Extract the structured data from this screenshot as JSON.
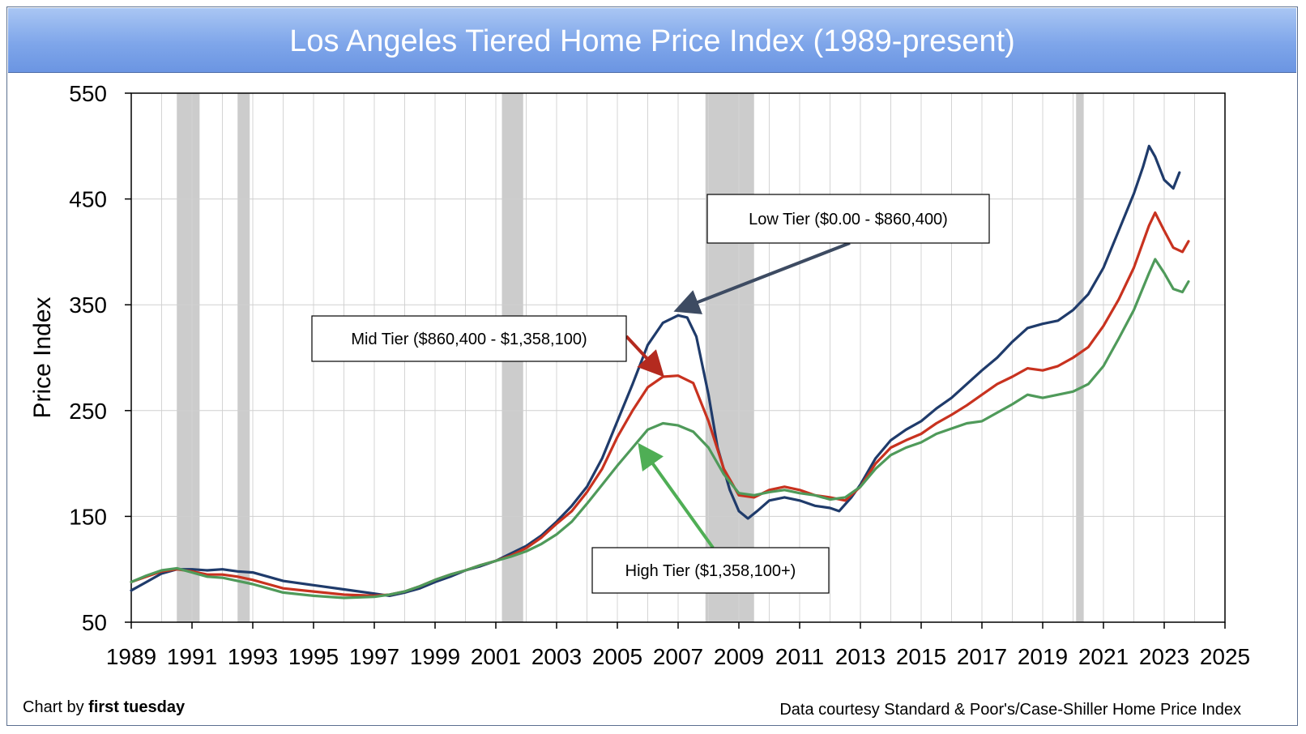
{
  "chart_data": {
    "type": "line",
    "title": "Los Angeles Tiered Home Price Index (1989-present)",
    "xlabel": "",
    "ylabel": "Price Index",
    "xlim": [
      1989,
      2025
    ],
    "ylim": [
      50,
      550
    ],
    "x_ticks": [
      "1989",
      "1991",
      "1993",
      "1995",
      "1997",
      "1999",
      "2001",
      "2003",
      "2005",
      "2007",
      "2009",
      "2011",
      "2013",
      "2015",
      "2017",
      "2019",
      "2021",
      "2023",
      "2025"
    ],
    "y_ticks": [
      "50",
      "150",
      "250",
      "350",
      "450",
      "550"
    ],
    "grid": true,
    "recessions": [
      [
        1990.5,
        1991.25
      ],
      [
        1992.5,
        1992.9
      ],
      [
        2001.2,
        2001.9
      ],
      [
        2007.9,
        2009.5
      ],
      [
        2020.1,
        2020.35
      ]
    ],
    "series": [
      {
        "name": "Low Tier ($0.00 - $860,400)",
        "color": "#1f3b6b",
        "points": [
          [
            1989,
            80
          ],
          [
            1989.5,
            88
          ],
          [
            1990,
            96
          ],
          [
            1990.5,
            100
          ],
          [
            1991,
            100
          ],
          [
            1991.5,
            99
          ],
          [
            1992,
            100
          ],
          [
            1992.5,
            98
          ],
          [
            1993,
            97
          ],
          [
            1993.5,
            93
          ],
          [
            1994,
            89
          ],
          [
            1995,
            85
          ],
          [
            1996,
            81
          ],
          [
            1997,
            77
          ],
          [
            1997.5,
            75
          ],
          [
            1998,
            78
          ],
          [
            1998.5,
            82
          ],
          [
            1999,
            88
          ],
          [
            1999.5,
            93
          ],
          [
            2000,
            99
          ],
          [
            2000.5,
            103
          ],
          [
            2001,
            108
          ],
          [
            2001.5,
            115
          ],
          [
            2002,
            122
          ],
          [
            2002.5,
            132
          ],
          [
            2003,
            145
          ],
          [
            2003.5,
            160
          ],
          [
            2004,
            178
          ],
          [
            2004.5,
            205
          ],
          [
            2005,
            240
          ],
          [
            2005.5,
            275
          ],
          [
            2006,
            312
          ],
          [
            2006.5,
            333
          ],
          [
            2007,
            340
          ],
          [
            2007.3,
            338
          ],
          [
            2007.6,
            320
          ],
          [
            2008,
            265
          ],
          [
            2008.3,
            215
          ],
          [
            2008.7,
            175
          ],
          [
            2009,
            155
          ],
          [
            2009.3,
            148
          ],
          [
            2009.6,
            155
          ],
          [
            2010,
            165
          ],
          [
            2010.5,
            168
          ],
          [
            2011,
            165
          ],
          [
            2011.5,
            160
          ],
          [
            2012,
            158
          ],
          [
            2012.3,
            155
          ],
          [
            2012.7,
            168
          ],
          [
            2013,
            180
          ],
          [
            2013.5,
            205
          ],
          [
            2014,
            222
          ],
          [
            2014.5,
            232
          ],
          [
            2015,
            240
          ],
          [
            2015.5,
            252
          ],
          [
            2016,
            262
          ],
          [
            2016.5,
            275
          ],
          [
            2017,
            288
          ],
          [
            2017.5,
            300
          ],
          [
            2018,
            315
          ],
          [
            2018.5,
            328
          ],
          [
            2019,
            332
          ],
          [
            2019.5,
            335
          ],
          [
            2020,
            345
          ],
          [
            2020.5,
            360
          ],
          [
            2021,
            385
          ],
          [
            2021.5,
            420
          ],
          [
            2022,
            455
          ],
          [
            2022.3,
            480
          ],
          [
            2022.5,
            500
          ],
          [
            2022.7,
            490
          ],
          [
            2023,
            468
          ],
          [
            2023.3,
            460
          ],
          [
            2023.5,
            475
          ]
        ]
      },
      {
        "name": "Mid Tier ($860,400 - $1,358,100)",
        "color": "#c8321f",
        "points": [
          [
            1989,
            88
          ],
          [
            1989.5,
            93
          ],
          [
            1990,
            98
          ],
          [
            1990.5,
            100
          ],
          [
            1991,
            98
          ],
          [
            1991.5,
            95
          ],
          [
            1992,
            95
          ],
          [
            1992.5,
            93
          ],
          [
            1993,
            90
          ],
          [
            1993.5,
            86
          ],
          [
            1994,
            82
          ],
          [
            1995,
            79
          ],
          [
            1996,
            76
          ],
          [
            1997,
            75
          ],
          [
            1997.5,
            76
          ],
          [
            1998,
            79
          ],
          [
            1998.5,
            84
          ],
          [
            1999,
            90
          ],
          [
            1999.5,
            95
          ],
          [
            2000,
            99
          ],
          [
            2000.5,
            104
          ],
          [
            2001,
            108
          ],
          [
            2001.5,
            113
          ],
          [
            2002,
            120
          ],
          [
            2002.5,
            130
          ],
          [
            2003,
            143
          ],
          [
            2003.5,
            155
          ],
          [
            2004,
            173
          ],
          [
            2004.5,
            195
          ],
          [
            2005,
            225
          ],
          [
            2005.5,
            250
          ],
          [
            2006,
            272
          ],
          [
            2006.5,
            282
          ],
          [
            2007,
            283
          ],
          [
            2007.5,
            276
          ],
          [
            2008,
            240
          ],
          [
            2008.5,
            195
          ],
          [
            2009,
            170
          ],
          [
            2009.5,
            168
          ],
          [
            2010,
            175
          ],
          [
            2010.5,
            178
          ],
          [
            2011,
            175
          ],
          [
            2011.5,
            170
          ],
          [
            2012,
            168
          ],
          [
            2012.5,
            165
          ],
          [
            2013,
            178
          ],
          [
            2013.5,
            200
          ],
          [
            2014,
            215
          ],
          [
            2014.5,
            222
          ],
          [
            2015,
            228
          ],
          [
            2015.5,
            238
          ],
          [
            2016,
            246
          ],
          [
            2016.5,
            255
          ],
          [
            2017,
            265
          ],
          [
            2017.5,
            275
          ],
          [
            2018,
            282
          ],
          [
            2018.5,
            290
          ],
          [
            2019,
            288
          ],
          [
            2019.5,
            292
          ],
          [
            2020,
            300
          ],
          [
            2020.5,
            310
          ],
          [
            2021,
            330
          ],
          [
            2021.5,
            355
          ],
          [
            2022,
            385
          ],
          [
            2022.5,
            425
          ],
          [
            2022.7,
            437
          ],
          [
            2023,
            420
          ],
          [
            2023.3,
            404
          ],
          [
            2023.6,
            400
          ],
          [
            2023.8,
            410
          ]
        ]
      },
      {
        "name": "High Tier ($1,358,100+)",
        "color": "#4f9a5a",
        "points": [
          [
            1989,
            88
          ],
          [
            1989.5,
            94
          ],
          [
            1990,
            99
          ],
          [
            1990.5,
            101
          ],
          [
            1991,
            97
          ],
          [
            1991.5,
            93
          ],
          [
            1992,
            92
          ],
          [
            1992.5,
            89
          ],
          [
            1993,
            86
          ],
          [
            1993.5,
            82
          ],
          [
            1994,
            78
          ],
          [
            1995,
            75
          ],
          [
            1996,
            73
          ],
          [
            1997,
            74
          ],
          [
            1997.5,
            76
          ],
          [
            1998,
            79
          ],
          [
            1998.5,
            84
          ],
          [
            1999,
            90
          ],
          [
            1999.5,
            95
          ],
          [
            2000,
            99
          ],
          [
            2000.5,
            104
          ],
          [
            2001,
            108
          ],
          [
            2001.5,
            112
          ],
          [
            2002,
            117
          ],
          [
            2002.5,
            124
          ],
          [
            2003,
            133
          ],
          [
            2003.5,
            145
          ],
          [
            2004,
            162
          ],
          [
            2004.5,
            180
          ],
          [
            2005,
            198
          ],
          [
            2005.5,
            215
          ],
          [
            2006,
            232
          ],
          [
            2006.5,
            238
          ],
          [
            2007,
            236
          ],
          [
            2007.5,
            230
          ],
          [
            2008,
            215
          ],
          [
            2008.5,
            190
          ],
          [
            2009,
            172
          ],
          [
            2009.5,
            170
          ],
          [
            2010,
            173
          ],
          [
            2010.5,
            175
          ],
          [
            2011,
            172
          ],
          [
            2011.5,
            170
          ],
          [
            2012,
            166
          ],
          [
            2012.5,
            168
          ],
          [
            2013,
            178
          ],
          [
            2013.5,
            195
          ],
          [
            2014,
            208
          ],
          [
            2014.5,
            215
          ],
          [
            2015,
            220
          ],
          [
            2015.5,
            228
          ],
          [
            2016,
            233
          ],
          [
            2016.5,
            238
          ],
          [
            2017,
            240
          ],
          [
            2017.5,
            248
          ],
          [
            2018,
            256
          ],
          [
            2018.5,
            265
          ],
          [
            2019,
            262
          ],
          [
            2019.5,
            265
          ],
          [
            2020,
            268
          ],
          [
            2020.5,
            275
          ],
          [
            2021,
            292
          ],
          [
            2021.5,
            318
          ],
          [
            2022,
            345
          ],
          [
            2022.5,
            380
          ],
          [
            2022.7,
            393
          ],
          [
            2023,
            380
          ],
          [
            2023.3,
            365
          ],
          [
            2023.6,
            362
          ],
          [
            2023.8,
            372
          ]
        ]
      }
    ],
    "annotations": [
      {
        "text": "Low Tier ($0.00 - $860,400)",
        "series": 0
      },
      {
        "text": "Mid Tier ($860,400 - $1,358,100)",
        "series": 1
      },
      {
        "text": "High Tier ($1,358,100+)",
        "series": 2
      }
    ]
  },
  "footer": {
    "credit_prefix": "Chart by ",
    "credit_brand": "first tuesday",
    "source": "Data courtesy Standard & Poor's/Case-Shiller Home Price Index"
  }
}
